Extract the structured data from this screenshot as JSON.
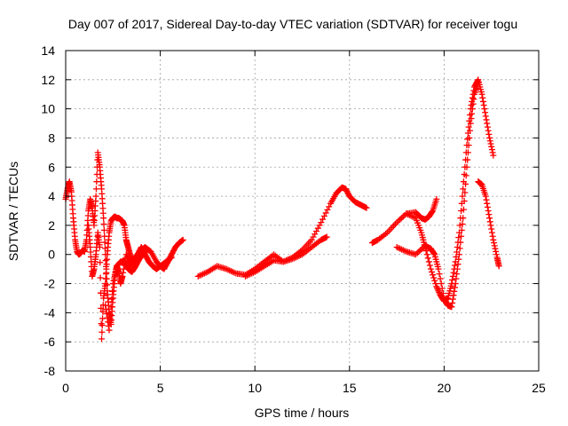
{
  "chart_data": {
    "type": "scatter",
    "title": "Day 007 of 2017, Sidereal Day-to-day VTEC variation (SDTVAR) for receiver togu",
    "xlabel": "GPS time / hours",
    "ylabel": "SDTVAR / TECUs",
    "xlim": [
      0,
      25
    ],
    "ylim": [
      -8,
      14
    ],
    "xticks": [
      "0",
      "5",
      "10",
      "15",
      "20",
      "25"
    ],
    "yticks": [
      "-8",
      "-6",
      "-4",
      "-2",
      "0",
      "2",
      "4",
      "6",
      "8",
      "10",
      "12",
      "14"
    ],
    "grid": true,
    "marker": "+",
    "color": "#ff0000",
    "series": [
      {
        "x": [
          0.0,
          0.1,
          0.2,
          0.3,
          0.4,
          0.5,
          0.6,
          0.7,
          0.8,
          0.9,
          1.0,
          1.1,
          1.2,
          1.3,
          1.4,
          1.5,
          1.6,
          1.7,
          1.8,
          1.9,
          2.0,
          2.1,
          2.2,
          2.3,
          2.4,
          2.5,
          2.6,
          2.7,
          2.8,
          2.9,
          3.0,
          3.2,
          3.4,
          3.6,
          3.8,
          4.0,
          4.2,
          4.4,
          4.6,
          4.8,
          5.0,
          5.2,
          5.4,
          5.6,
          5.8,
          6.0,
          6.2
        ],
        "y": [
          3.8,
          4.5,
          5.0,
          4.3,
          2.5,
          1.0,
          0.2,
          0.0,
          0.1,
          0.3,
          0.2,
          1.0,
          3.0,
          3.8,
          3.2,
          2.0,
          4.0,
          7.0,
          6.0,
          4.5,
          2.5,
          0.0,
          -2.5,
          -4.0,
          -4.8,
          -3.0,
          -1.5,
          -0.8,
          -1.2,
          -2.0,
          -1.5,
          0.0,
          -0.8,
          -0.5,
          0.0,
          0.5,
          0.0,
          -0.5,
          -0.8,
          -1.0,
          -0.8,
          -1.0,
          -0.5,
          0.0,
          0.5,
          0.8,
          1.0
        ]
      },
      {
        "x": [
          1.2,
          1.3,
          1.4,
          1.5,
          1.6,
          1.7,
          1.8,
          1.9,
          2.0,
          2.1,
          2.2,
          2.3,
          2.4,
          2.5,
          2.6,
          2.7,
          2.8,
          2.9,
          3.0,
          3.1,
          3.2,
          3.3,
          3.4,
          3.5,
          3.6,
          3.8,
          4.0,
          4.2,
          4.5,
          4.8,
          5.0,
          5.3,
          5.6
        ],
        "y": [
          2.0,
          0.5,
          -1.5,
          -1.0,
          0.0,
          1.5,
          0.5,
          -5.8,
          -3.0,
          -2.0,
          0.0,
          1.5,
          2.3,
          2.5,
          2.6,
          2.5,
          2.5,
          2.4,
          2.3,
          2.0,
          1.0,
          0.5,
          0.0,
          -0.5,
          -0.3,
          0.0,
          0.3,
          0.5,
          0.2,
          -0.5,
          -0.8,
          -0.5,
          -0.2
        ]
      },
      {
        "x": [
          2.1,
          2.3,
          2.5,
          2.7,
          2.9,
          3.1,
          3.3,
          3.5,
          3.7,
          3.9,
          4.1,
          4.3
        ],
        "y": [
          -3.5,
          -5.2,
          -2.0,
          -0.8,
          -0.5,
          -0.5,
          -1.0,
          -1.2,
          -0.8,
          -0.3,
          0.0,
          0.3
        ]
      },
      {
        "x": [
          7.0,
          7.5,
          8.0,
          8.5,
          9.0,
          9.5,
          10.0,
          10.5,
          11.0,
          11.5,
          12.0,
          12.5,
          13.0,
          13.5,
          14.0,
          14.3,
          14.6,
          14.8,
          15.0,
          15.3,
          15.6,
          15.9
        ],
        "y": [
          -1.5,
          -1.2,
          -0.8,
          -1.0,
          -1.3,
          -1.4,
          -1.0,
          -0.5,
          0.0,
          -0.5,
          -0.2,
          0.3,
          1.0,
          2.2,
          3.5,
          4.2,
          4.6,
          4.5,
          4.0,
          3.6,
          3.4,
          3.2
        ]
      },
      {
        "x": [
          9.5,
          10.0,
          10.5,
          11.0,
          11.5,
          12.0,
          12.5,
          13.0,
          13.5,
          13.8
        ],
        "y": [
          -1.5,
          -1.2,
          -0.8,
          -0.4,
          -0.5,
          -0.3,
          0.0,
          0.5,
          1.0,
          1.2
        ]
      },
      {
        "x": [
          16.2,
          16.5,
          17.0,
          17.5,
          18.0,
          18.5,
          18.8,
          19.0,
          19.2,
          19.4,
          19.6
        ],
        "y": [
          0.8,
          1.0,
          1.5,
          2.2,
          2.8,
          2.9,
          2.5,
          2.4,
          2.6,
          3.0,
          3.8
        ]
      },
      {
        "x": [
          18.0,
          18.5,
          18.8,
          19.0,
          19.3,
          19.6,
          19.8,
          20.0,
          20.2,
          20.4,
          20.6,
          20.8,
          21.0,
          21.2,
          21.4,
          21.6,
          21.8,
          22.0,
          22.2,
          22.4,
          22.6
        ],
        "y": [
          2.8,
          2.5,
          1.5,
          0.5,
          -1.0,
          -2.2,
          -2.8,
          -3.2,
          -3.0,
          -2.0,
          -0.5,
          1.5,
          4.5,
          7.5,
          10.0,
          11.5,
          12.0,
          11.0,
          9.5,
          8.0,
          6.8
        ]
      },
      {
        "x": [
          17.5,
          18.0,
          18.5,
          19.0,
          19.3,
          19.5,
          19.7,
          20.0,
          20.2,
          20.4,
          20.6,
          20.8,
          21.0,
          21.2,
          21.4,
          21.6,
          21.8
        ],
        "y": [
          0.5,
          0.2,
          0.0,
          0.6,
          0.4,
          0.0,
          -1.0,
          -3.0,
          -3.5,
          -3.6,
          -2.0,
          0.0,
          2.5,
          6.0,
          9.0,
          11.0,
          11.8
        ]
      },
      {
        "x": [
          21.8,
          22.0,
          22.2,
          22.4,
          22.6,
          22.8,
          22.9
        ],
        "y": [
          5.0,
          4.8,
          4.0,
          2.5,
          1.0,
          -0.2,
          -0.8
        ]
      }
    ]
  }
}
